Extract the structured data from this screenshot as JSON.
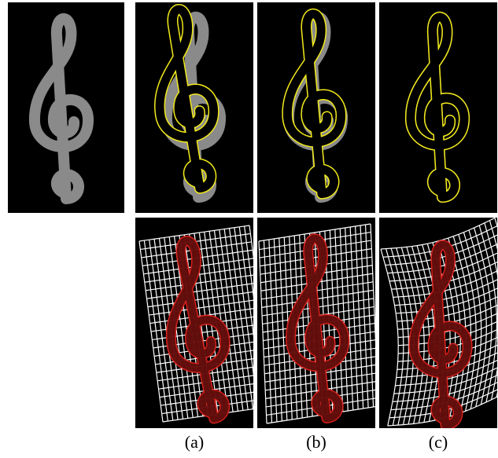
{
  "figure": {
    "captions": [
      "(a)",
      "(b)",
      "(c)"
    ],
    "colors": {
      "background": "#000000",
      "shape_fill": "#8a8a8a",
      "contour_yellow": "#f2ea1a",
      "contour_red": "#e0201a",
      "grid_white": "#ffffff"
    },
    "panels": [
      {
        "name": "source-shape",
        "content": "treble-clef"
      },
      {
        "name": "top-a",
        "content": "treble-clef-with-yellow-contour"
      },
      {
        "name": "top-b",
        "content": "treble-clef-with-yellow-contour"
      },
      {
        "name": "top-c",
        "content": "treble-clef-with-yellow-contour"
      },
      {
        "name": "bottom-a",
        "content": "deformation-grid-with-red-contour"
      },
      {
        "name": "bottom-b",
        "content": "deformation-grid-with-red-contour"
      },
      {
        "name": "bottom-c",
        "content": "deformation-grid-with-red-contour"
      }
    ]
  }
}
